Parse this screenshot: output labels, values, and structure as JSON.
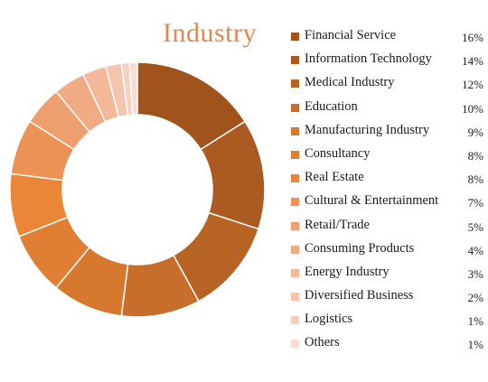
{
  "chart_data": {
    "type": "pie",
    "title": "Industry",
    "categories": [
      "Financial Service",
      "Information Technology",
      "Medical Industry",
      "Education",
      "Manufacturing Industry",
      "Consultancy",
      "Real Estate",
      "Cultural & Entertainment",
      "Retail/Trade",
      "Consuming Products",
      "Energy Industry",
      "Diversified Business",
      "Logistics",
      "Others"
    ],
    "values": [
      16,
      14,
      12,
      10,
      9,
      8,
      8,
      7,
      5,
      4,
      3,
      2,
      1,
      1
    ],
    "value_labels": [
      "16%",
      "14%",
      "12%",
      "10%",
      "9%",
      "8%",
      "8%",
      "7%",
      "5%",
      "4%",
      "3%",
      "2%",
      "1%",
      "1%"
    ],
    "colors": [
      "#A1531C",
      "#AB5A22",
      "#B76324",
      "#C76E2A",
      "#D6782E",
      "#E07F34",
      "#EA8638",
      "#EB9254",
      "#EE9F6F",
      "#F0AA84",
      "#F3B898",
      "#F5C4AC",
      "#F7D0C0",
      "#F8DDD2"
    ],
    "legend_position": "right"
  }
}
